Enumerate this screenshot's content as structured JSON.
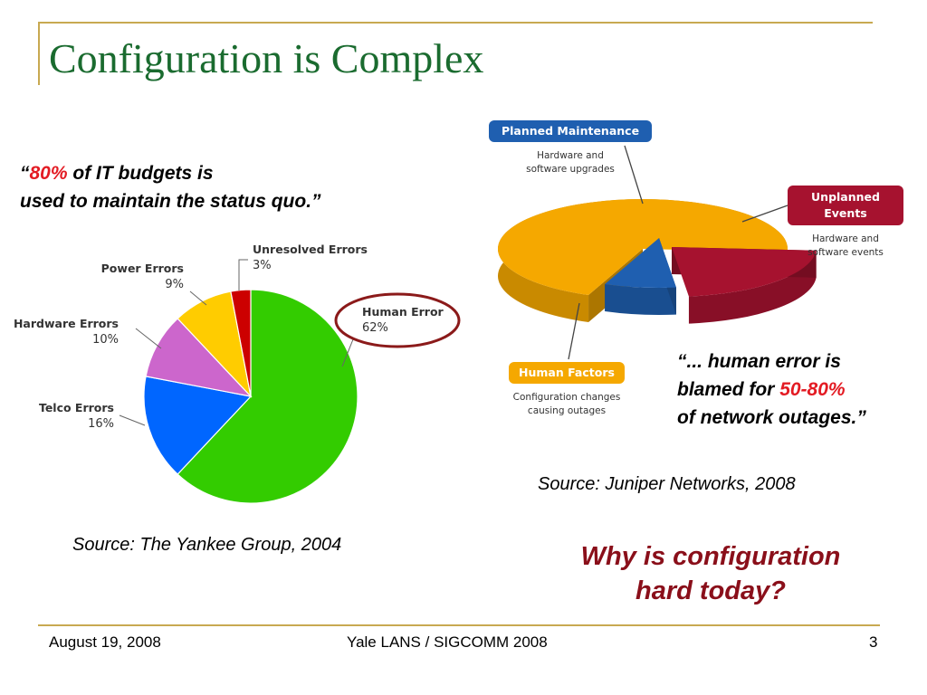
{
  "slide": {
    "title": "Configuration is Complex",
    "quote_left": {
      "open": "“",
      "highlight": "80%",
      "line1_rest": " of IT budgets is",
      "line2": "used to maintain the status quo.”"
    },
    "quote_right": {
      "line1": "“... human error is",
      "line2_prefix": "blamed for ",
      "highlight": "50-80%",
      "line3": "of network outages.”"
    },
    "source_left": "Source: The Yankee Group, 2004",
    "source_right": "Source: Juniper Networks, 2008",
    "question_line1": "Why is configuration",
    "question_line2": "hard today?",
    "footer": {
      "date": "August 19, 2008",
      "center": "Yale LANS / SIGCOMM 2008",
      "page": "3"
    }
  },
  "chart_data": [
    {
      "type": "pie",
      "categories": [
        "Human Error",
        "Telco Errors",
        "Hardware Errors",
        "Power Errors",
        "Unresolved Errors"
      ],
      "values": [
        62,
        16,
        10,
        9,
        3
      ],
      "value_labels": [
        "62%",
        "16%",
        "10%",
        "9%",
        "3%"
      ],
      "colors": [
        "#33cc00",
        "#0066ff",
        "#cc66cc",
        "#ffcc00",
        "#cc0000"
      ],
      "highlighted": "Human Error",
      "highlight_color": "#8b1a1a"
    },
    {
      "type": "pie",
      "style": "3d-exploded",
      "categories": [
        "Human Factors",
        "Unplanned Events",
        "Planned Maintenance"
      ],
      "descriptions": [
        "Configuration changes causing outages",
        "Hardware and software events",
        "Hardware and software upgrades"
      ],
      "values": [
        70,
        22,
        8
      ],
      "colors": [
        "#f5a800",
        "#a6122f",
        "#1f5fb0"
      ],
      "label_colors": [
        "#f5a800",
        "#a6122f",
        "#1f5fb0"
      ]
    }
  ]
}
